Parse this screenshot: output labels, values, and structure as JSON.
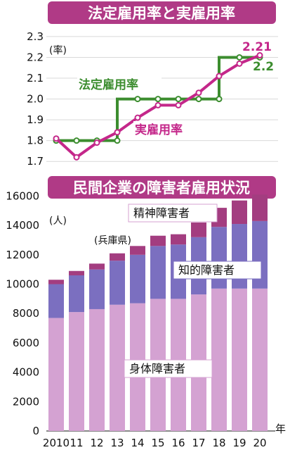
{
  "colors": {
    "title_bg": "#b03a86",
    "legal_line": "#3c8d2f",
    "actual_line": "#c4278a",
    "physical": "#d4a2d2",
    "intellectual": "#7b6fc0",
    "mental": "#a33d80",
    "label_box": "#ffffff"
  },
  "chart_data": [
    {
      "type": "line",
      "title": "法定雇用率と実雇用率",
      "ylabel": "(率)",
      "ylim": [
        1.65,
        2.32
      ],
      "yticks": [
        "2.3",
        "2.2",
        "2.1",
        "2.0",
        "1.9",
        "1.8",
        "1.7"
      ],
      "x": [
        "2010",
        "11",
        "12",
        "13",
        "14",
        "15",
        "16",
        "17",
        "18",
        "19",
        "20"
      ],
      "series": [
        {
          "name": "法定雇用率",
          "color": "#3c8d2f",
          "style": "step",
          "values": [
            1.8,
            1.8,
            1.8,
            1.8,
            2.0,
            2.0,
            2.0,
            2.0,
            2.0,
            2.2,
            2.2
          ]
        },
        {
          "name": "実雇用率",
          "color": "#c4278a",
          "style": "line",
          "values": [
            1.81,
            1.72,
            1.79,
            1.84,
            1.91,
            1.97,
            1.97,
            2.03,
            2.11,
            2.17,
            2.21
          ]
        }
      ],
      "end_labels": {
        "actual": "2.21",
        "legal": "2.2"
      }
    },
    {
      "type": "bar",
      "stacked": true,
      "title": "民間企業の障害者雇用状況",
      "ylabel": "(人)",
      "subtitle": "(兵庫県)",
      "xlabel": "年",
      "ylim": [
        0,
        16500
      ],
      "yticks": [
        "16000",
        "14000",
        "12000",
        "10000",
        "8000",
        "6000",
        "4000",
        "2000",
        "0"
      ],
      "categories": [
        "2010",
        "11",
        "12",
        "13",
        "14",
        "15",
        "16",
        "17",
        "18",
        "19",
        "20"
      ],
      "series": [
        {
          "name": "身体障害者",
          "color": "#d4a2d2",
          "values": [
            7700,
            8100,
            8300,
            8600,
            8700,
            9000,
            9000,
            9300,
            9700,
            9700,
            9700
          ]
        },
        {
          "name": "知的障害者",
          "color": "#7b6fc0",
          "values": [
            2300,
            2500,
            2700,
            3000,
            3300,
            3600,
            3700,
            3900,
            4200,
            4400,
            4600
          ]
        },
        {
          "name": "精神障害者",
          "color": "#a33d80",
          "values": [
            300,
            300,
            400,
            500,
            600,
            700,
            700,
            1000,
            1300,
            1600,
            1800
          ]
        }
      ]
    }
  ]
}
